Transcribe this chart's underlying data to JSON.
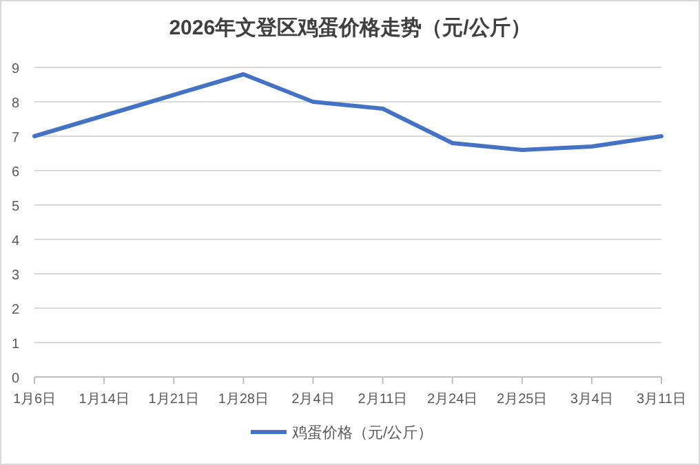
{
  "chart_data": {
    "type": "line",
    "title": "2026年文登区鸡蛋价格走势（元/公斤）",
    "categories": [
      "1月6日",
      "1月14日",
      "1月21日",
      "1月28日",
      "2月4日",
      "2月11日",
      "2月24日",
      "2月25日",
      "3月4日",
      "3月11日"
    ],
    "series": [
      {
        "name": "鸡蛋价格（元/公斤）",
        "color": "#4472c4",
        "values": [
          7.0,
          7.6,
          8.2,
          8.8,
          8.0,
          7.8,
          6.8,
          6.6,
          6.7,
          7.0
        ]
      }
    ],
    "ylim": [
      0,
      9
    ],
    "yticks": [
      0,
      1,
      2,
      3,
      4,
      5,
      6,
      7,
      8,
      9
    ],
    "grid": "y",
    "legend": "bottom"
  }
}
